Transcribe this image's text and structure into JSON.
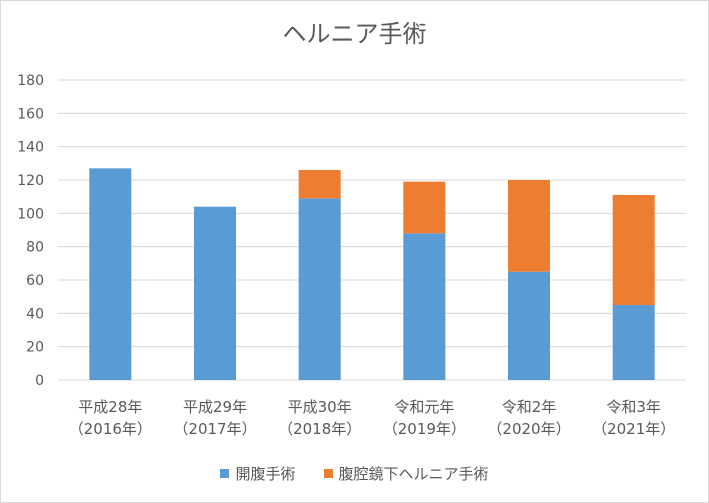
{
  "chart_data": {
    "type": "bar",
    "stacked": true,
    "title": "ヘルニア手術",
    "categories": [
      [
        "平成28年",
        "（2016年）"
      ],
      [
        "平成29年",
        "（2017年）"
      ],
      [
        "平成30年",
        "（2018年）"
      ],
      [
        "令和元年",
        "（2019年）"
      ],
      [
        "令和2年",
        "（2020年）"
      ],
      [
        "令和3年",
        "（2021年）"
      ]
    ],
    "series": [
      {
        "name": "開腹手術",
        "color": "#5b9bd5",
        "values": [
          127,
          104,
          109,
          88,
          65,
          45
        ]
      },
      {
        "name": "腹腔鏡下ヘルニア手術",
        "color": "#ed7d31",
        "values": [
          0,
          0,
          17,
          31,
          55,
          66
        ]
      }
    ],
    "ylim": [
      0,
      180
    ],
    "yticks": [
      0,
      20,
      40,
      60,
      80,
      100,
      120,
      140,
      160,
      180
    ],
    "grid": true,
    "legend": "bottom"
  }
}
